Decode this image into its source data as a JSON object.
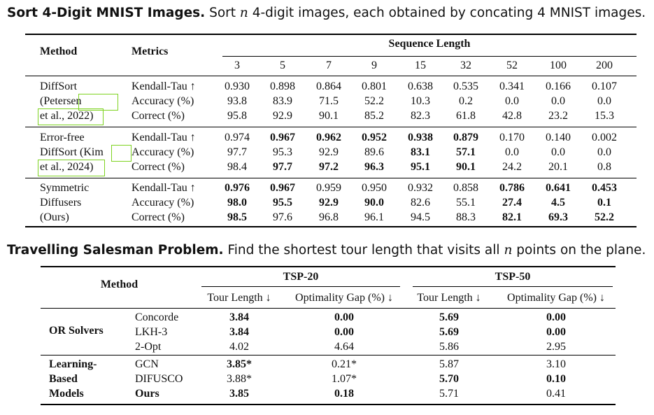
{
  "sort": {
    "title_bold": "Sort 4-Digit MNIST Images.",
    "title_pre": "Sort",
    "title_var": "n",
    "title_post": "4-digit images, each obtained by concating 4 MNIST images.",
    "col_method": "Method",
    "col_metrics": "Metrics",
    "col_group": "Sequence Length",
    "lengths": [
      "3",
      "5",
      "7",
      "9",
      "15",
      "32",
      "52",
      "100",
      "200"
    ],
    "groups": [
      {
        "method_lines": [
          "DiffSort",
          "(Petersen",
          "et al., 2022)"
        ],
        "rows": [
          {
            "metric": "Kendall-Tau ↑",
            "values": [
              "0.930",
              "0.898",
              "0.864",
              "0.801",
              "0.638",
              "0.535",
              "0.341",
              "0.166",
              "0.107"
            ],
            "bold": [
              false,
              false,
              false,
              false,
              false,
              false,
              false,
              false,
              false
            ]
          },
          {
            "metric": "Accuracy (%)",
            "values": [
              "93.8",
              "83.9",
              "71.5",
              "52.2",
              "10.3",
              "0.2",
              "0.0",
              "0.0",
              "0.0"
            ],
            "bold": [
              false,
              false,
              false,
              false,
              false,
              false,
              false,
              false,
              false
            ]
          },
          {
            "metric": "Correct (%)",
            "values": [
              "95.8",
              "92.9",
              "90.1",
              "85.2",
              "82.3",
              "61.8",
              "42.8",
              "23.2",
              "15.3"
            ],
            "bold": [
              false,
              false,
              false,
              false,
              false,
              false,
              false,
              false,
              false
            ]
          }
        ]
      },
      {
        "method_lines": [
          "Error-free",
          "DiffSort (Kim",
          "et al., 2024)"
        ],
        "rows": [
          {
            "metric": "Kendall-Tau ↑",
            "values": [
              "0.974",
              "0.967",
              "0.962",
              "0.952",
              "0.938",
              "0.879",
              "0.170",
              "0.140",
              "0.002"
            ],
            "bold": [
              false,
              true,
              true,
              true,
              true,
              true,
              false,
              false,
              false
            ]
          },
          {
            "metric": "Accuracy (%)",
            "values": [
              "97.7",
              "95.3",
              "92.9",
              "89.6",
              "83.1",
              "57.1",
              "0.0",
              "0.0",
              "0.0"
            ],
            "bold": [
              false,
              false,
              false,
              false,
              true,
              true,
              false,
              false,
              false
            ]
          },
          {
            "metric": "Correct (%)",
            "values": [
              "98.4",
              "97.7",
              "97.2",
              "96.3",
              "95.1",
              "90.1",
              "24.2",
              "20.1",
              "0.8"
            ],
            "bold": [
              false,
              true,
              true,
              true,
              true,
              true,
              false,
              false,
              false
            ]
          }
        ]
      },
      {
        "method_lines": [
          "Symmetric",
          "Diffusers",
          "(Ours)"
        ],
        "rows": [
          {
            "metric": "Kendall-Tau ↑",
            "values": [
              "0.976",
              "0.967",
              "0.959",
              "0.950",
              "0.932",
              "0.858",
              "0.786",
              "0.641",
              "0.453"
            ],
            "bold": [
              true,
              true,
              false,
              false,
              false,
              false,
              true,
              true,
              true
            ]
          },
          {
            "metric": "Accuracy (%)",
            "values": [
              "98.0",
              "95.5",
              "92.9",
              "90.0",
              "82.6",
              "55.1",
              "27.4",
              "4.5",
              "0.1"
            ],
            "bold": [
              true,
              true,
              true,
              true,
              false,
              false,
              true,
              true,
              true
            ]
          },
          {
            "metric": "Correct (%)",
            "values": [
              "98.5",
              "97.6",
              "96.8",
              "96.1",
              "94.5",
              "88.3",
              "82.1",
              "69.3",
              "52.2"
            ],
            "bold": [
              true,
              false,
              false,
              false,
              false,
              false,
              true,
              true,
              true
            ]
          }
        ]
      }
    ]
  },
  "tsp": {
    "title_bold": "Travelling Salesman Problem.",
    "title_pre": "Find the shortest tour length that visits all",
    "title_var": "n",
    "title_post": "points on the plane.",
    "col_method": "Method",
    "groups_header": [
      "TSP-20",
      "TSP-50"
    ],
    "sub_headers": [
      "Tour Length ↓",
      "Optimality Gap (%) ↓",
      "Tour Length ↓",
      "Optimality Gap (%) ↓"
    ],
    "sections": [
      {
        "label_lines": [
          "OR Solvers"
        ],
        "rows": [
          {
            "name": "Concorde",
            "name_bold": false,
            "values": [
              "3.84",
              "0.00",
              "5.69",
              "0.00"
            ],
            "bold": [
              true,
              true,
              true,
              true
            ]
          },
          {
            "name": "LKH-3",
            "name_bold": false,
            "values": [
              "3.84",
              "0.00",
              "5.69",
              "0.00"
            ],
            "bold": [
              true,
              true,
              true,
              true
            ]
          },
          {
            "name": "2-Opt",
            "name_bold": false,
            "values": [
              "4.02",
              "4.64",
              "5.86",
              "2.95"
            ],
            "bold": [
              false,
              false,
              false,
              false
            ]
          }
        ]
      },
      {
        "label_lines": [
          "Learning-",
          "Based",
          "Models"
        ],
        "rows": [
          {
            "name": "GCN",
            "name_bold": false,
            "values": [
              "3.85*",
              "0.21*",
              "5.87",
              "3.10"
            ],
            "bold": [
              true,
              false,
              false,
              false
            ]
          },
          {
            "name": "DIFUSCO",
            "name_bold": false,
            "values": [
              "3.88*",
              "1.07*",
              "5.70",
              "0.10"
            ],
            "bold": [
              false,
              false,
              true,
              true
            ]
          },
          {
            "name": "Ours",
            "name_bold": true,
            "values": [
              "3.85",
              "0.18",
              "5.71",
              "0.41"
            ],
            "bold": [
              true,
              true,
              false,
              false
            ]
          }
        ]
      }
    ]
  }
}
